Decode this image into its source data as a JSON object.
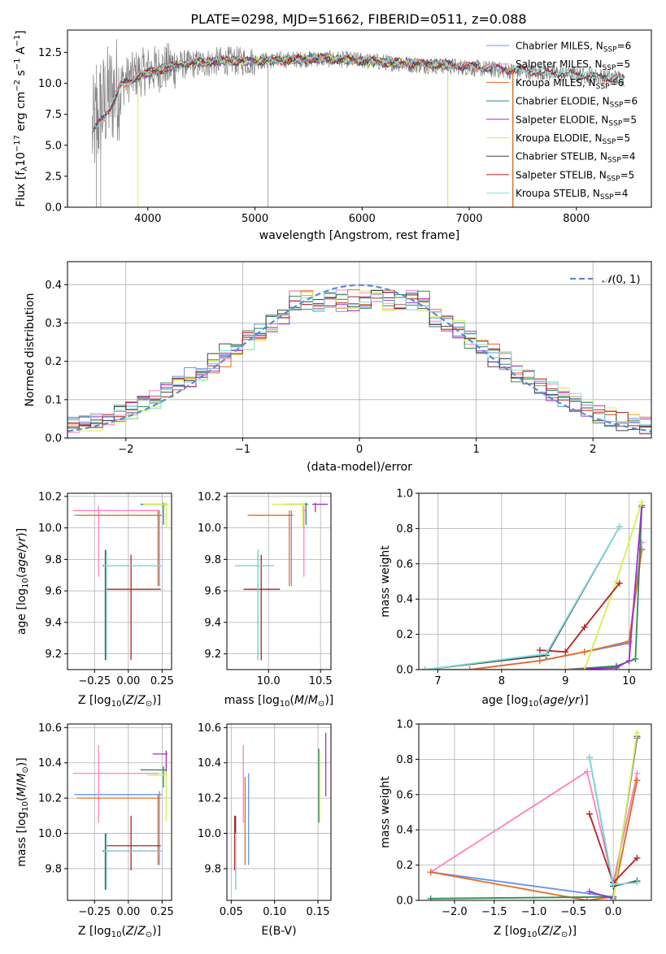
{
  "figure_title": "PLATE=0298, MJD=51662, FIBERID=0511, z=0.088",
  "colors": {
    "Chabrier MILES": "#6495ed",
    "Salpeter MILES": "#ff80c0",
    "Kroupa MILES": "#e46c24",
    "Chabrier ELODIE": "#2e8b57",
    "Salpeter ELODIE": "#9932cc",
    "Kroupa ELODIE": "#d4f04e",
    "Chabrier STELIB": "#444444",
    "Salpeter STELIB": "#b22222",
    "Kroupa STELIB": "#7fdfdf",
    "data": "#808080",
    "normal": "#5b8bd6",
    "grid": "#b0b0b0"
  },
  "legend_labels": [
    "Chabrier MILES, N_SSP=6",
    "Salpeter MILES, N_SSP=5",
    "Kroupa MILES, N_SSP=6",
    "Chabrier ELODIE, N_SSP=6",
    "Salpeter ELODIE, N_SSP=5",
    "Kroupa ELODIE, N_SSP=5",
    "Chabrier STELIB, N_SSP=4",
    "Salpeter STELIB, N_SSP=5",
    "Kroupa STELIB, N_SSP=4"
  ],
  "chart_data": [
    {
      "id": "spectrum",
      "type": "line",
      "title": "PLATE=0298, MJD=51662, FIBERID=0511, z=0.088",
      "xlabel": "wavelength [Angstrom, rest frame]",
      "ylabel": "Flux [f_λ 10^-17 erg cm^-2 s^-1 A^-1]",
      "xlim": [
        3250,
        8700
      ],
      "ylim": [
        0,
        14.3
      ],
      "xticks": [
        4000,
        5000,
        6000,
        7000,
        8000
      ],
      "yticks": [
        0.0,
        2.5,
        5.0,
        7.5,
        10.0,
        12.5
      ],
      "grid": false,
      "legend_position": "top-right",
      "data_trend": {
        "x": [
          3480,
          3600,
          3750,
          3900,
          4100,
          4300,
          4500,
          4700,
          5000,
          5300,
          5600,
          5900,
          6200,
          6500,
          6800,
          7100,
          7400,
          7700,
          8000,
          8300,
          8450
        ],
        "y": [
          6.0,
          8.5,
          10.0,
          10.8,
          11.2,
          11.5,
          11.6,
          11.8,
          11.8,
          11.9,
          12.0,
          11.9,
          11.7,
          11.5,
          11.4,
          11.2,
          11.0,
          10.9,
          10.7,
          10.5,
          10.4
        ]
      },
      "model_trend": {
        "x": [
          3480,
          3600,
          3750,
          3900,
          4100,
          4300,
          4500,
          4700,
          5000,
          5300,
          5600,
          5900,
          6200,
          6500,
          6800,
          7100,
          7400,
          7700,
          8000,
          8300,
          8450
        ],
        "y": [
          6.0,
          7.4,
          9.8,
          10.6,
          11.1,
          11.5,
          11.7,
          11.8,
          11.8,
          11.9,
          12.0,
          11.9,
          11.7,
          11.6,
          11.5,
          11.3,
          11.1,
          10.9,
          10.7,
          10.5,
          10.4
        ]
      }
    },
    {
      "id": "residuals",
      "type": "histogram",
      "xlabel": "(data-model)/error",
      "ylabel": "Normed distribution",
      "xlim": [
        -2.5,
        2.5
      ],
      "ylim": [
        0,
        0.46
      ],
      "xticks": [
        -2,
        -1,
        0,
        1,
        2
      ],
      "yticks": [
        0.0,
        0.1,
        0.2,
        0.3,
        0.4
      ],
      "grid": true,
      "legend": "N(0,1)",
      "legend_position": "top-right",
      "bin_width": 0.1
    },
    {
      "id": "age_vs_Z",
      "type": "scatter",
      "xlabel": "Z [log10(Z/Z_sun)]",
      "ylabel": "age  [log10(age/yr)]",
      "xlim": [
        -0.45,
        0.32
      ],
      "ylim": [
        9.1,
        10.22
      ],
      "xticks": [
        -0.25,
        0.0,
        0.25
      ],
      "yticks": [
        9.2,
        9.4,
        9.6,
        9.8,
        10.0,
        10.2
      ],
      "grid": true,
      "points": [
        {
          "model": "Chabrier MILES",
          "x": 0.23,
          "y": 10.08,
          "xerr": [
            0.63,
            0.02
          ],
          "yerr": [
            0.45,
            0.03
          ]
        },
        {
          "model": "Salpeter MILES",
          "x": -0.22,
          "y": 10.11,
          "xerr": [
            0.19,
            0.45
          ],
          "yerr": [
            0.42,
            0.03
          ]
        },
        {
          "model": "Kroupa MILES",
          "x": 0.22,
          "y": 10.08,
          "xerr": [
            0.6,
            0.02
          ],
          "yerr": [
            0.45,
            0.03
          ]
        },
        {
          "model": "Chabrier ELODIE",
          "x": 0.26,
          "y": 10.15,
          "xerr": [
            0.17,
            0.02
          ],
          "yerr": [
            0.13,
            0.01
          ]
        },
        {
          "model": "Salpeter ELODIE",
          "x": 0.28,
          "y": 10.15,
          "xerr": [
            0.01,
            0.01
          ],
          "yerr": [
            0.01,
            0.01
          ]
        },
        {
          "model": "Kroupa ELODIE",
          "x": 0.28,
          "y": 10.15,
          "xerr": [
            0.17,
            0.02
          ],
          "yerr": [
            0.15,
            0.01
          ]
        },
        {
          "model": "Chabrier STELIB",
          "x": -0.17,
          "y": 9.76,
          "xerr": [
            0.02,
            0.41
          ],
          "yerr": [
            0.6,
            0.1
          ]
        },
        {
          "model": "Salpeter STELIB",
          "x": 0.02,
          "y": 9.61,
          "xerr": [
            0.19,
            0.22
          ],
          "yerr": [
            0.45,
            0.22
          ]
        },
        {
          "model": "Kroupa STELIB",
          "x": -0.16,
          "y": 9.76,
          "xerr": [
            0.02,
            0.41
          ],
          "yerr": [
            0.6,
            0.1
          ]
        }
      ]
    },
    {
      "id": "age_vs_mass",
      "type": "scatter",
      "xlabel": "mass [log10(M/M_sun)]",
      "ylabel": "",
      "xlim": [
        9.6,
        10.6
      ],
      "ylim": [
        9.1,
        10.22
      ],
      "xticks": [
        10.0,
        10.5
      ],
      "yticks": [
        9.2,
        9.4,
        9.6,
        9.8,
        10.0,
        10.2
      ],
      "grid": true,
      "points": [
        {
          "model": "Chabrier MILES",
          "x": 10.22,
          "y": 10.08,
          "xerr": [
            0.4,
            0.02
          ],
          "yerr": [
            0.45,
            0.03
          ]
        },
        {
          "model": "Salpeter MILES",
          "x": 10.34,
          "y": 10.11,
          "xerr": [
            0.02,
            0.02
          ],
          "yerr": [
            0.42,
            0.03
          ]
        },
        {
          "model": "Kroupa MILES",
          "x": 10.2,
          "y": 10.08,
          "xerr": [
            0.4,
            0.02
          ],
          "yerr": [
            0.45,
            0.03
          ]
        },
        {
          "model": "Chabrier ELODIE",
          "x": 10.36,
          "y": 10.15,
          "xerr": [
            0.2,
            0.02
          ],
          "yerr": [
            0.13,
            0.01
          ]
        },
        {
          "model": "Salpeter ELODIE",
          "x": 10.45,
          "y": 10.15,
          "xerr": [
            0.03,
            0.12
          ],
          "yerr": [
            0.05,
            0.01
          ]
        },
        {
          "model": "Kroupa ELODIE",
          "x": 10.33,
          "y": 10.15,
          "xerr": [
            0.3,
            0.02
          ],
          "yerr": [
            0.15,
            0.01
          ]
        },
        {
          "model": "Chabrier STELIB",
          "x": 9.9,
          "y": 9.76,
          "xerr": [
            0.22,
            0.15
          ],
          "yerr": [
            0.6,
            0.1
          ]
        },
        {
          "model": "Salpeter STELIB",
          "x": 9.93,
          "y": 9.61,
          "xerr": [
            0.17,
            0.18
          ],
          "yerr": [
            0.45,
            0.22
          ]
        },
        {
          "model": "Kroupa STELIB",
          "x": 9.9,
          "y": 9.76,
          "xerr": [
            0.22,
            0.15
          ],
          "yerr": [
            0.6,
            0.1
          ]
        }
      ]
    },
    {
      "id": "mass_weight_vs_age",
      "type": "line",
      "xlabel": "age  [log10(age/yr)]",
      "ylabel": "mass weight",
      "xlim": [
        6.7,
        10.35
      ],
      "ylim": [
        0,
        1.0
      ],
      "xticks": [
        7,
        8,
        9,
        10
      ],
      "yticks": [
        0.0,
        0.2,
        0.4,
        0.6,
        0.8,
        1.0
      ],
      "grid": true,
      "series": [
        {
          "model": "Chabrier MILES",
          "x": [
            7.5,
            8.6,
            9.3,
            10.0,
            10.2
          ],
          "y": [
            0.0,
            0.05,
            0.1,
            0.15,
            0.68
          ]
        },
        {
          "model": "Salpeter MILES",
          "x": [
            7.5,
            8.6,
            9.3,
            10.0,
            10.2
          ],
          "y": [
            0.0,
            0.05,
            0.1,
            0.16,
            0.72
          ]
        },
        {
          "model": "Kroupa MILES",
          "x": [
            7.5,
            8.6,
            9.3,
            10.0,
            10.2
          ],
          "y": [
            0.0,
            0.05,
            0.1,
            0.16,
            0.68
          ]
        },
        {
          "model": "Chabrier ELODIE",
          "x": [
            6.8,
            9.0,
            9.8,
            10.1,
            10.2
          ],
          "y": [
            0.0,
            0.0,
            0.02,
            0.06,
            0.92
          ]
        },
        {
          "model": "Salpeter ELODIE",
          "x": [
            6.8,
            9.0,
            9.8,
            10.0,
            10.2
          ],
          "y": [
            0.0,
            0.0,
            0.01,
            0.05,
            0.93
          ]
        },
        {
          "model": "Kroupa ELODIE",
          "x": [
            6.8,
            9.0,
            9.3,
            9.8,
            10.2
          ],
          "y": [
            0.0,
            0.0,
            0.0,
            0.5,
            0.95
          ]
        },
        {
          "model": "Chabrier STELIB",
          "x": [
            6.8,
            8.7,
            9.85
          ],
          "y": [
            0.0,
            0.08,
            0.81
          ]
        },
        {
          "model": "Salpeter STELIB",
          "x": [
            8.6,
            9.0,
            9.3,
            9.85
          ],
          "y": [
            0.11,
            0.1,
            0.24,
            0.49
          ]
        },
        {
          "model": "Kroupa STELIB",
          "x": [
            6.8,
            8.7,
            9.85
          ],
          "y": [
            0.0,
            0.09,
            0.81
          ]
        }
      ]
    },
    {
      "id": "mass_vs_Z",
      "type": "scatter",
      "xlabel": "Z [log10(Z/Z_sun)]",
      "ylabel": "mass [log10(M/M_sun)]",
      "xlim": [
        -0.45,
        0.32
      ],
      "ylim": [
        9.62,
        10.62
      ],
      "xticks": [
        -0.25,
        0.0,
        0.25
      ],
      "yticks": [
        9.8,
        10.0,
        10.2,
        10.4,
        10.6
      ],
      "grid": true,
      "points": [
        {
          "model": "Chabrier MILES",
          "x": 0.23,
          "y": 10.22,
          "xerr": [
            0.63,
            0.02
          ],
          "yerr": [
            0.4,
            0.02
          ]
        },
        {
          "model": "Salpeter MILES",
          "x": -0.22,
          "y": 10.34,
          "xerr": [
            0.19,
            0.45
          ],
          "yerr": [
            0.28,
            0.16
          ]
        },
        {
          "model": "Kroupa MILES",
          "x": 0.22,
          "y": 10.2,
          "xerr": [
            0.6,
            0.02
          ],
          "yerr": [
            0.38,
            0.02
          ]
        },
        {
          "model": "Chabrier ELODIE",
          "x": 0.26,
          "y": 10.36,
          "xerr": [
            0.17,
            0.02
          ],
          "yerr": [
            0.1,
            0.02
          ]
        },
        {
          "model": "Salpeter ELODIE",
          "x": 0.28,
          "y": 10.45,
          "xerr": [
            0.1,
            0.01
          ],
          "yerr": [
            0.12,
            0.02
          ]
        },
        {
          "model": "Kroupa ELODIE",
          "x": 0.28,
          "y": 10.33,
          "xerr": [
            0.14,
            0.01
          ],
          "yerr": [
            0.26,
            0.02
          ]
        },
        {
          "model": "Chabrier STELIB",
          "x": -0.17,
          "y": 9.9,
          "xerr": [
            0.02,
            0.41
          ],
          "yerr": [
            0.22,
            0.1
          ]
        },
        {
          "model": "Salpeter STELIB",
          "x": 0.02,
          "y": 9.93,
          "xerr": [
            0.19,
            0.22
          ],
          "yerr": [
            0.14,
            0.17
          ]
        },
        {
          "model": "Kroupa STELIB",
          "x": -0.16,
          "y": 9.9,
          "xerr": [
            0.02,
            0.41
          ],
          "yerr": [
            0.22,
            0.1
          ]
        }
      ]
    },
    {
      "id": "mass_vs_ebv",
      "type": "scatter",
      "xlabel": "E(B-V)",
      "ylabel": "",
      "xlim": [
        0.045,
        0.165
      ],
      "ylim": [
        9.62,
        10.62
      ],
      "xticks": [
        0.05,
        0.1,
        0.15
      ],
      "yticks": [
        9.8,
        10.0,
        10.2,
        10.4,
        10.6
      ],
      "grid": true,
      "points": [
        {
          "model": "Chabrier MILES",
          "x": 0.07,
          "y": 10.22,
          "yerr": [
            0.4,
            0.12
          ]
        },
        {
          "model": "Salpeter MILES",
          "x": 0.064,
          "y": 10.34,
          "yerr": [
            0.28,
            0.16
          ]
        },
        {
          "model": "Kroupa MILES",
          "x": 0.066,
          "y": 10.2,
          "yerr": [
            0.38,
            0.12
          ]
        },
        {
          "model": "Chabrier ELODIE",
          "x": 0.151,
          "y": 10.36,
          "yerr": [
            0.3,
            0.12
          ]
        },
        {
          "model": "Salpeter ELODIE",
          "x": 0.159,
          "y": 10.45,
          "yerr": [
            0.24,
            0.12
          ]
        },
        {
          "model": "Kroupa ELODIE",
          "x": 0.152,
          "y": 10.33,
          "yerr": [
            0.26,
            0.12
          ]
        },
        {
          "model": "Chabrier STELIB",
          "x": 0.055,
          "y": 9.9,
          "yerr": [
            0.22,
            0.2
          ]
        },
        {
          "model": "Salpeter STELIB",
          "x": 0.054,
          "y": 9.93,
          "yerr": [
            0.14,
            0.17
          ]
        },
        {
          "model": "Kroupa STELIB",
          "x": 0.055,
          "y": 9.9,
          "yerr": [
            0.22,
            0.1
          ]
        }
      ]
    },
    {
      "id": "mass_weight_vs_Z",
      "type": "line",
      "xlabel": "Z [log10(Z/Z_sun)]",
      "ylabel": "mass weight",
      "xlim": [
        -2.45,
        0.48
      ],
      "ylim": [
        0,
        1.0
      ],
      "xticks": [
        -2.0,
        -1.5,
        -1.0,
        -0.5,
        0.0
      ],
      "yticks": [
        0.0,
        0.2,
        0.4,
        0.6,
        0.8,
        1.0
      ],
      "grid": true,
      "series": [
        {
          "model": "Chabrier MILES",
          "x": [
            -2.3,
            0.0,
            0.3
          ],
          "y": [
            0.16,
            0.02,
            0.68
          ]
        },
        {
          "model": "Salpeter MILES",
          "x": [
            -2.3,
            -0.33,
            0.0,
            0.3
          ],
          "y": [
            0.16,
            0.73,
            0.1,
            0.72
          ]
        },
        {
          "model": "Kroupa MILES",
          "x": [
            -2.3,
            -0.33,
            0.0,
            0.3
          ],
          "y": [
            0.16,
            0.0,
            0.02,
            0.68
          ]
        },
        {
          "model": "Chabrier ELODIE",
          "x": [
            -2.3,
            0.0,
            0.3
          ],
          "y": [
            0.01,
            0.02,
            0.92
          ]
        },
        {
          "model": "Salpeter ELODIE",
          "x": [
            -0.3,
            0.0,
            0.3
          ],
          "y": [
            0.05,
            0.01,
            0.93
          ]
        },
        {
          "model": "Kroupa ELODIE",
          "x": [
            0.0,
            0.3
          ],
          "y": [
            0.0,
            0.95
          ]
        },
        {
          "model": "Chabrier STELIB",
          "x": [
            -0.3,
            0.0,
            0.3
          ],
          "y": [
            0.81,
            0.08,
            0.11
          ]
        },
        {
          "model": "Salpeter STELIB",
          "x": [
            -0.3,
            0.0,
            0.3
          ],
          "y": [
            0.49,
            0.1,
            0.24
          ]
        },
        {
          "model": "Kroupa STELIB",
          "x": [
            -0.3,
            0.0,
            0.3
          ],
          "y": [
            0.81,
            0.09,
            0.1
          ]
        }
      ]
    }
  ]
}
